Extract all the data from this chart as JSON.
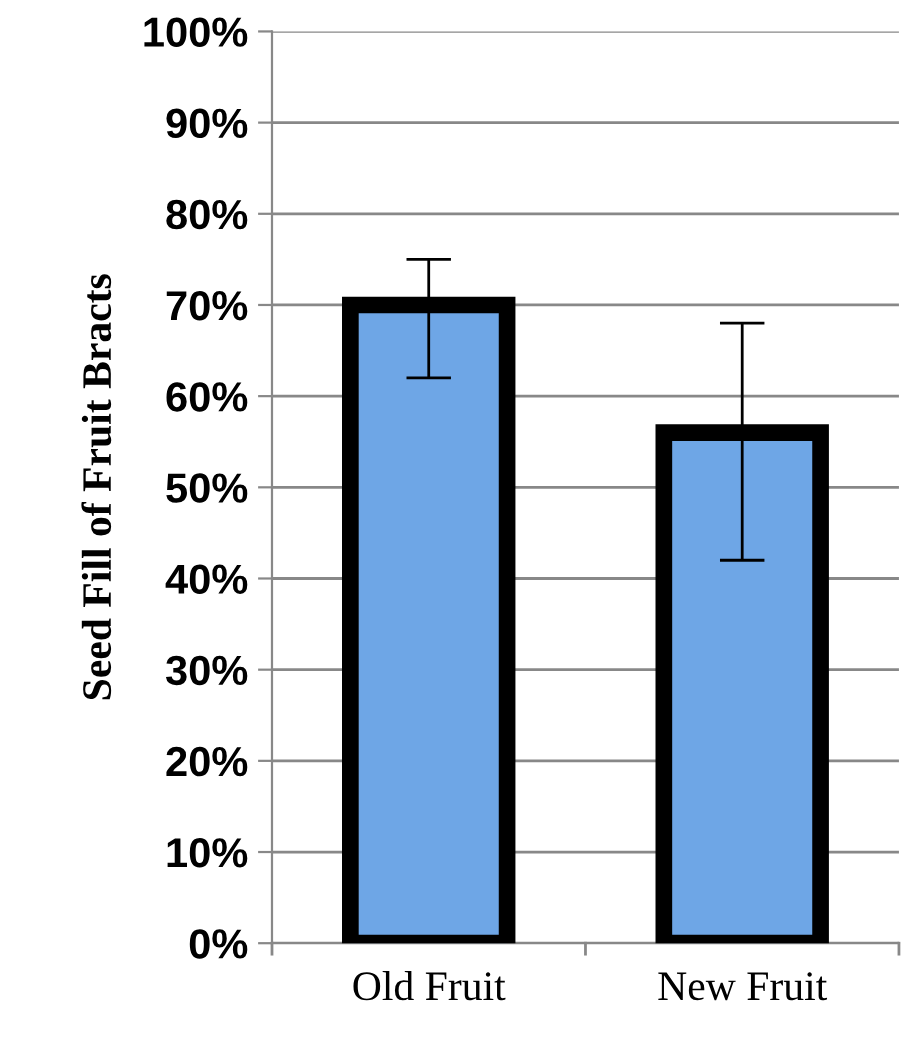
{
  "chart_data": {
    "type": "bar",
    "ylabel": "Seed Fill of Fruit Bracts",
    "categories": [
      "Old Fruit",
      "New Fruit"
    ],
    "values": [
      70,
      56
    ],
    "errors": [
      [
        62,
        75
      ],
      [
        42,
        68
      ]
    ],
    "color": "#6ea6e6",
    "ylim": [
      0,
      100
    ],
    "yticks": [
      {
        "value": 0,
        "label": "0%"
      },
      {
        "value": 10,
        "label": "10%"
      },
      {
        "value": 20,
        "label": "20%"
      },
      {
        "value": 30,
        "label": "30%"
      },
      {
        "value": 40,
        "label": "40%"
      },
      {
        "value": 50,
        "label": "50%"
      },
      {
        "value": 60,
        "label": "60%"
      },
      {
        "value": 70,
        "label": "70%"
      },
      {
        "value": 80,
        "label": "80%"
      },
      {
        "value": 90,
        "label": "90%"
      },
      {
        "value": 100,
        "label": "100%"
      }
    ],
    "grid": "y"
  }
}
